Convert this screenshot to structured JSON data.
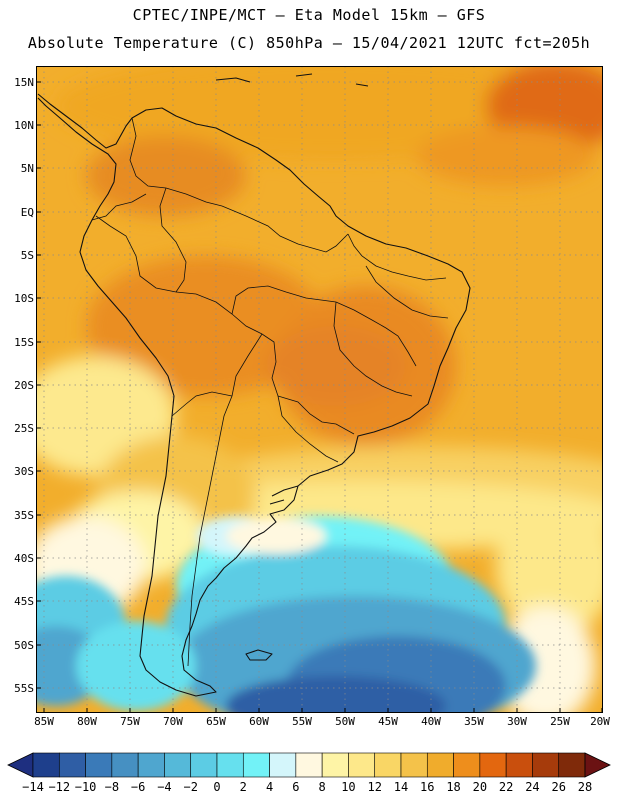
{
  "header": {
    "line1": "CPTEC/INPE/MCT –  Eta Model 15km – GFS",
    "line2": "Absolute Temperature (C) 850hPa – 15/04/2021 12UTC fct=205h"
  },
  "lat_labels": [
    "15N",
    "10N",
    "5N",
    "EQ",
    "5S",
    "10S",
    "15S",
    "20S",
    "25S",
    "30S",
    "35S",
    "40S",
    "45S",
    "50S",
    "55S"
  ],
  "lon_labels": [
    "85W",
    "80W",
    "75W",
    "70W",
    "65W",
    "60W",
    "55W",
    "50W",
    "45W",
    "40W",
    "35W",
    "30W",
    "25W",
    "20W"
  ],
  "colorbar": {
    "labels": [
      "-14",
      "-12",
      "-10",
      "-8",
      "-6",
      "-4",
      "-2",
      "0",
      "2",
      "4",
      "6",
      "8",
      "10",
      "12",
      "14",
      "16",
      "18",
      "20",
      "22",
      "24",
      "26",
      "28"
    ],
    "colors": [
      "#1e3f8c",
      "#2f5ea5",
      "#3a7ab8",
      "#4690c2",
      "#4fa6cf",
      "#55b9d9",
      "#5ccce4",
      "#66e0ee",
      "#72f2f7",
      "#d4f6fb",
      "#fff8e0",
      "#fef4a6",
      "#fde88a",
      "#f9d665",
      "#f4c24a",
      "#f0ac2c",
      "#ee8e1c",
      "#e3670f",
      "#c94f0d",
      "#a63b0b",
      "#7f2a0a"
    ],
    "under_color": "#1e2f80",
    "over_color": "#6b1213"
  },
  "map": {
    "icons": [
      "coastline-icon",
      "country-borders-icon"
    ]
  }
}
